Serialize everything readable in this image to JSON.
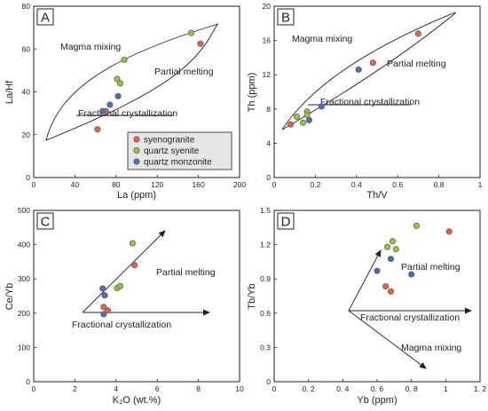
{
  "colors": {
    "syenogranite": "#e8614a",
    "quartz_syenite": "#93c540",
    "quartz_monzonite": "#4f6bb5",
    "marker_edge": "#666666",
    "line": "#222222",
    "legend_bg": "#e6e6e6"
  },
  "chart_data": [
    {
      "panel": "A",
      "type": "scatter",
      "xlabel": "La (ppm)",
      "ylabel": "La/Hf",
      "xlim": [
        0,
        200
      ],
      "ylim": [
        0,
        80
      ],
      "xticks": [
        "0",
        "40",
        "80",
        "120",
        "160",
        "200"
      ],
      "yticks": [
        "0",
        "20",
        "40",
        "60",
        "80"
      ],
      "annotations": [
        "Magma mixing",
        "Partial melting",
        "Fractional crystallization"
      ],
      "legend": {
        "placement": "bottom-right",
        "entries": [
          "syenogranite",
          "quartz syenite",
          "quartz monzonite"
        ]
      },
      "series": [
        {
          "name": "syenogranite",
          "points": [
            [
              62,
              22.5
            ],
            [
              70,
              31
            ],
            [
              162,
              62.5
            ]
          ]
        },
        {
          "name": "quartz syenite",
          "points": [
            [
              81,
              46
            ],
            [
              84,
              44
            ],
            [
              88,
              55
            ],
            [
              153,
              67.5
            ]
          ]
        },
        {
          "name": "quartz monzonite",
          "points": [
            [
              67,
              31
            ],
            [
              74,
              34
            ],
            [
              82,
              38
            ]
          ]
        }
      ]
    },
    {
      "panel": "B",
      "type": "scatter",
      "xlabel": "Th/V",
      "ylabel": "Th (ppm)",
      "xlim": [
        0,
        1.0
      ],
      "ylim": [
        0,
        20
      ],
      "xticks": [
        "0",
        "0.2",
        "0.4",
        "0.6",
        "0.8",
        "1"
      ],
      "yticks": [
        "0",
        "4",
        "8",
        "12",
        "16",
        "20"
      ],
      "annotations": [
        "Magma mixing",
        "Partial melting",
        "Fractional crystallization"
      ],
      "series": [
        {
          "name": "syenogranite",
          "points": [
            [
              0.08,
              6.2
            ],
            [
              0.48,
              13.4
            ],
            [
              0.7,
              16.8
            ]
          ]
        },
        {
          "name": "quartz syenite",
          "points": [
            [
              0.11,
              7.1
            ],
            [
              0.14,
              6.4
            ],
            [
              0.16,
              7.7
            ],
            [
              0.16,
              7.3
            ]
          ]
        },
        {
          "name": "quartz monzonite",
          "points": [
            [
              0.17,
              6.7
            ],
            [
              0.23,
              8.3
            ],
            [
              0.41,
              12.6
            ]
          ]
        }
      ]
    },
    {
      "panel": "C",
      "type": "scatter",
      "xlabel": "K₂O (wt.%)",
      "ylabel": "Ce/Yb",
      "xlim": [
        0,
        10
      ],
      "ylim": [
        0,
        500
      ],
      "xticks": [
        "0",
        "2",
        "4",
        "6",
        "8",
        "10"
      ],
      "yticks": [
        "0",
        "100",
        "200",
        "300",
        "400",
        "500"
      ],
      "annotations": [
        "Partial melting",
        "Fractional crystallization"
      ],
      "series": [
        {
          "name": "syenogranite",
          "points": [
            [
              3.4,
              218
            ],
            [
              3.6,
              208
            ],
            [
              4.9,
              340
            ]
          ]
        },
        {
          "name": "quartz syenite",
          "points": [
            [
              4.05,
              273
            ],
            [
              4.2,
              279
            ],
            [
              4.8,
              404
            ]
          ]
        },
        {
          "name": "quartz monzonite",
          "points": [
            [
              3.35,
              272
            ],
            [
              3.45,
              252
            ],
            [
              3.4,
              197
            ]
          ]
        }
      ]
    },
    {
      "panel": "D",
      "type": "scatter",
      "xlabel": "Yb (ppm)",
      "ylabel": "Tb/Yb",
      "xlim": [
        0,
        1.2
      ],
      "ylim": [
        0,
        1.5
      ],
      "xticks": [
        "0",
        "0. 2",
        "0. 4",
        "0. 6",
        "0. 8",
        "1",
        "1. 2"
      ],
      "yticks": [
        "0",
        "0.3",
        "0.6",
        "0.9",
        "1.2",
        "1.5"
      ],
      "annotations": [
        "Partial melting",
        "Fractional crystallization",
        "Magma mixing"
      ],
      "series": [
        {
          "name": "syenogranite",
          "points": [
            [
              0.65,
              0.835
            ],
            [
              0.68,
              0.79
            ],
            [
              1.02,
              1.315
            ]
          ]
        },
        {
          "name": "quartz syenite",
          "points": [
            [
              0.66,
              1.18
            ],
            [
              0.69,
              1.23
            ],
            [
              0.71,
              1.16
            ],
            [
              0.83,
              1.365
            ]
          ]
        },
        {
          "name": "quartz monzonite",
          "points": [
            [
              0.6,
              0.97
            ],
            [
              0.68,
              1.075
            ],
            [
              0.8,
              0.94
            ]
          ]
        }
      ]
    }
  ]
}
